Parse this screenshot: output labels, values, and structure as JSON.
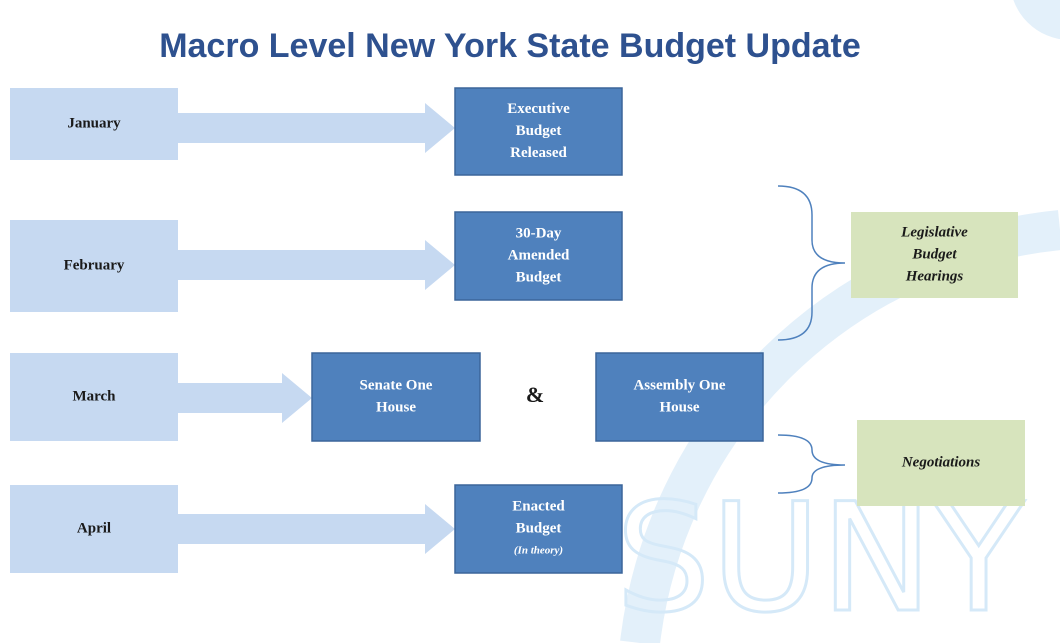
{
  "title": "Macro Level New York State Budget Update",
  "months": [
    "January",
    "February",
    "March",
    "April"
  ],
  "steps": [
    {
      "lines": [
        "Executive",
        "Budget",
        "Released"
      ]
    },
    {
      "lines": [
        "30-Day",
        "Amended",
        "Budget"
      ]
    },
    {
      "lines": [
        "Senate One",
        "House"
      ]
    },
    {
      "lines": [
        "Assembly One",
        "House"
      ]
    },
    {
      "lines": [
        "Enacted",
        "Budget"
      ],
      "note": "(In theory)"
    }
  ],
  "ampersand": "&",
  "side_labels": [
    {
      "lines": [
        "Legislative",
        "Budget",
        "Hearings"
      ]
    },
    {
      "lines": [
        "Negotiations"
      ]
    }
  ],
  "watermark": "SUNY"
}
